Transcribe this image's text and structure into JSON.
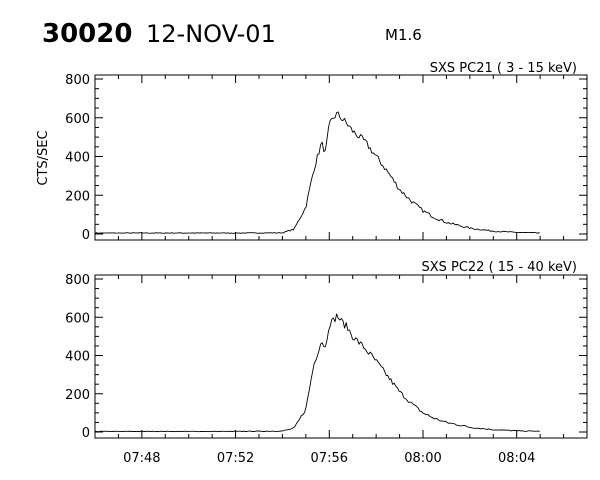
{
  "header": {
    "event_id": "30020",
    "date": "12-NOV-01",
    "flare_class": "M1.6"
  },
  "chart_data": [
    {
      "type": "line",
      "title": "SXS PC21  (  3 - 15 keV)",
      "ylabel": "CTS/SEC",
      "xlabel": "",
      "ylim": [
        0,
        800
      ],
      "y_ticks": [
        "0",
        "200",
        "400",
        "600",
        "800"
      ],
      "xlim": [
        "07:46",
        "08:07"
      ],
      "x_ticks": [
        "07:48",
        "07:52",
        "07:56",
        "08:00",
        "08:04"
      ],
      "series": [
        {
          "x": [
            "07:46",
            "07:48",
            "07:50",
            "07:52",
            "07:54",
            "07:54:30",
            "07:55:00",
            "07:55:20",
            "07:55:40",
            "07:55:50",
            "07:56:00",
            "07:56:10",
            "07:56:20",
            "07:56:30",
            "07:56:45",
            "07:57:00",
            "07:57:30",
            "07:58:00",
            "07:58:30",
            "07:59:00",
            "07:59:30",
            "08:00:00",
            "08:00:30",
            "08:01:00",
            "08:02:00",
            "08:03:00",
            "08:04:00",
            "08:05:00"
          ],
          "values": [
            5,
            5,
            5,
            5,
            6,
            25,
            140,
            330,
            470,
            420,
            560,
            600,
            620,
            600,
            570,
            530,
            480,
            400,
            320,
            230,
            170,
            120,
            85,
            60,
            30,
            15,
            8,
            5
          ]
        }
      ]
    },
    {
      "type": "line",
      "title": "SXS PC22  ( 15 - 40 keV)",
      "ylabel": "",
      "xlabel": "",
      "ylim": [
        0,
        800
      ],
      "y_ticks": [
        "0",
        "200",
        "400",
        "600",
        "800"
      ],
      "xlim": [
        "07:46",
        "08:07"
      ],
      "x_ticks": [
        "07:48",
        "07:52",
        "07:56",
        "08:00",
        "08:04"
      ],
      "series": [
        {
          "x": [
            "07:46",
            "07:48",
            "07:50",
            "07:52",
            "07:54",
            "07:54:30",
            "07:55:00",
            "07:55:20",
            "07:55:40",
            "07:55:50",
            "07:56:00",
            "07:56:10",
            "07:56:20",
            "07:56:30",
            "07:56:45",
            "07:57:00",
            "07:57:30",
            "07:58:00",
            "07:58:30",
            "07:59:00",
            "07:59:30",
            "08:00:00",
            "08:00:30",
            "08:01:00",
            "08:02:00",
            "08:03:00",
            "08:04:00",
            "08:05:00"
          ],
          "values": [
            3,
            3,
            3,
            3,
            5,
            20,
            120,
            350,
            480,
            440,
            570,
            580,
            610,
            580,
            550,
            500,
            440,
            370,
            290,
            210,
            150,
            100,
            70,
            50,
            25,
            12,
            6,
            4
          ]
        }
      ]
    }
  ]
}
